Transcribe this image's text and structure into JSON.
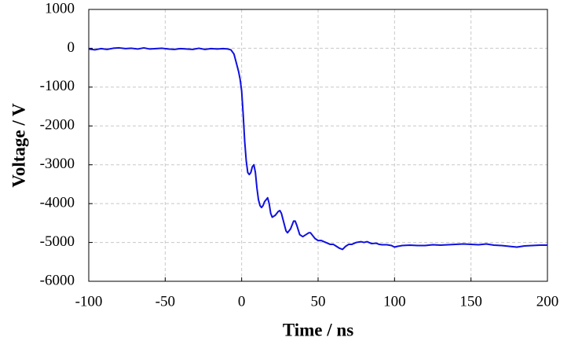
{
  "chart_data": {
    "type": "line",
    "xlabel": "Time / ns",
    "ylabel": "Voltage / V",
    "x": [
      -100,
      -96,
      -92,
      -88,
      -84,
      -80,
      -76,
      -72,
      -68,
      -64,
      -60,
      -56,
      -52,
      -48,
      -44,
      -40,
      -36,
      -32,
      -28,
      -24,
      -20,
      -16,
      -12,
      -9,
      -7,
      -5,
      -4,
      -3,
      -2,
      -1,
      0,
      1,
      2,
      3,
      4,
      5,
      6,
      7,
      8,
      9,
      10,
      11,
      12,
      13,
      14,
      15,
      16,
      17,
      18,
      19,
      20,
      22,
      24,
      25,
      26,
      28,
      29,
      30,
      32,
      34,
      35,
      36,
      38,
      40,
      42,
      44,
      45,
      46,
      48,
      50,
      52,
      55,
      58,
      60,
      62,
      64,
      66,
      68,
      70,
      72,
      75,
      78,
      80,
      82,
      85,
      88,
      90,
      92,
      95,
      98,
      100,
      102,
      105,
      110,
      115,
      120,
      125,
      130,
      135,
      140,
      145,
      150,
      155,
      160,
      165,
      170,
      175,
      180,
      185,
      190,
      195,
      200
    ],
    "values": [
      -20,
      -40,
      -10,
      -30,
      0,
      10,
      -10,
      0,
      -20,
      10,
      -20,
      -10,
      0,
      -20,
      -30,
      -10,
      -20,
      -30,
      0,
      -30,
      -10,
      -20,
      -10,
      -20,
      -40,
      -150,
      -300,
      -450,
      -600,
      -800,
      -1100,
      -1700,
      -2400,
      -2900,
      -3200,
      -3250,
      -3200,
      -3050,
      -3000,
      -3200,
      -3600,
      -3900,
      -4050,
      -4100,
      -4050,
      -3950,
      -3900,
      -3850,
      -4000,
      -4250,
      -4350,
      -4300,
      -4200,
      -4180,
      -4250,
      -4550,
      -4700,
      -4750,
      -4650,
      -4450,
      -4450,
      -4550,
      -4800,
      -4850,
      -4800,
      -4750,
      -4750,
      -4800,
      -4900,
      -4950,
      -4950,
      -5000,
      -5050,
      -5050,
      -5100,
      -5150,
      -5180,
      -5100,
      -5050,
      -5050,
      -5000,
      -4980,
      -5000,
      -4980,
      -5030,
      -5020,
      -5050,
      -5060,
      -5060,
      -5080,
      -5120,
      -5100,
      -5080,
      -5070,
      -5080,
      -5080,
      -5060,
      -5070,
      -5060,
      -5050,
      -5040,
      -5050,
      -5060,
      -5040,
      -5070,
      -5080,
      -5100,
      -5120,
      -5090,
      -5080,
      -5070,
      -5070
    ],
    "color": "#1010e0",
    "xlim": [
      -100,
      200
    ],
    "xticks": [
      -100,
      -50,
      0,
      50,
      100,
      150,
      200
    ],
    "ylim": [
      -6000,
      1000
    ],
    "yticks": [
      -6000,
      -5000,
      -4000,
      -3000,
      -2000,
      -1000,
      0,
      1000
    ],
    "grid": true
  }
}
